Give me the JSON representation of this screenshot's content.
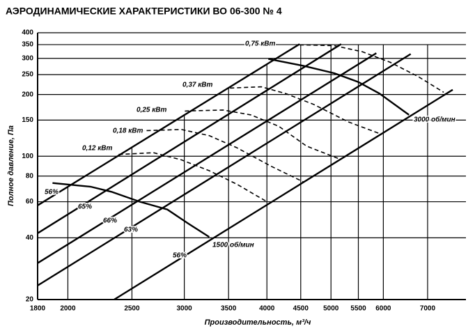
{
  "chart_data": {
    "type": "line",
    "title": "АЭРОДИНАМИЧЕСКИЕ ХАРАКТЕРИСТИКИ ВО 06-300 № 4",
    "x_label": "Производительность, м³/ч",
    "y_label": "Полное давление, Па",
    "log_x": true,
    "log_y": true,
    "xlim": [
      1800,
      8000
    ],
    "ylim": [
      20,
      400
    ],
    "xticks": [
      1800,
      2000,
      2500,
      3000,
      3500,
      4000,
      4500,
      5000,
      5500,
      6000,
      7000
    ],
    "yticks": [
      20,
      40,
      60,
      80,
      100,
      150,
      200,
      250,
      300,
      350,
      400
    ],
    "color": "#000000",
    "series": [
      {
        "name": "1500 об/мин",
        "dashed": false,
        "x": [
          1896,
          2166,
          2330,
          2568,
          2828,
          3040,
          3272
        ],
        "values": [
          74,
          71,
          67,
          60,
          55,
          47,
          40.4
        ]
      },
      {
        "name": "3000 об/мин",
        "dashed": false,
        "x": [
          4020,
          4540,
          5060,
          5500,
          5920,
          6560
        ],
        "values": [
          298,
          276,
          254,
          230,
          202,
          159
        ]
      },
      {
        "name": "0,12 кВт",
        "dashed": true,
        "x": [
          2387,
          2694,
          2970,
          3272,
          3604,
          4000
        ],
        "values": [
          102,
          104,
          96,
          85,
          73,
          60
        ]
      },
      {
        "name": "0,18 кВт",
        "dashed": true,
        "x": [
          2568,
          2970,
          3272,
          3604,
          4068,
          4540
        ],
        "values": [
          133,
          135,
          126,
          110,
          89,
          75
        ]
      },
      {
        "name": "0,25 кВт",
        "dashed": true,
        "x": [
          3006,
          3434,
          3782,
          4168,
          4592,
          5148
        ],
        "values": [
          166,
          168,
          159,
          140,
          112,
          97
        ]
      },
      {
        "name": "0,37 кВт",
        "dashed": true,
        "x": [
          3518,
          3923,
          4271,
          4706,
          5312,
          5920
        ],
        "values": [
          215,
          218,
          202,
          179,
          147,
          129
        ]
      },
      {
        "name": "0,75 кВт",
        "dashed": true,
        "x": [
          4482,
          5060,
          5576,
          6144,
          6768,
          7404
        ],
        "values": [
          349,
          346,
          323,
          287,
          245,
          205
        ]
      }
    ],
    "lines": [
      {
        "name": "56%",
        "x": [
          1800,
          4482
        ],
        "values": [
          57.6,
          352
        ]
      },
      {
        "name": "65%",
        "x": [
          1800,
          5180
        ],
        "values": [
          42.1,
          352
        ]
      },
      {
        "name": "66%",
        "x": [
          1800,
          5855
        ],
        "values": [
          30.1,
          318
        ]
      },
      {
        "name": "63%",
        "x": [
          1800,
          6600
        ],
        "values": [
          23.4,
          315
        ]
      },
      {
        "name": "56%",
        "x": [
          2350,
          7640
        ],
        "values": [
          20,
          211
        ]
      }
    ]
  }
}
